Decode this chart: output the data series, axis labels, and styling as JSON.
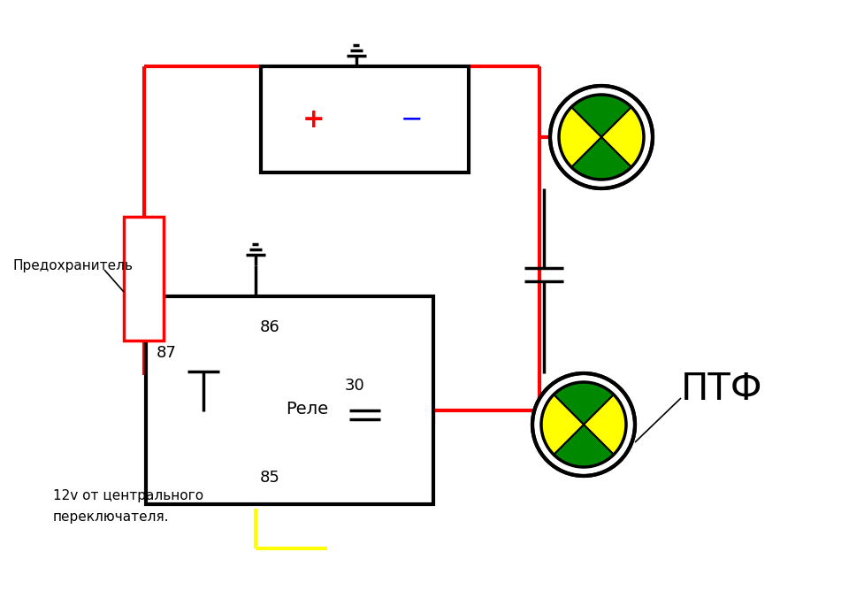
{
  "bg_color": "#ffffff",
  "black": "#000000",
  "red": "#ff0000",
  "yellow": "#ffff00",
  "green": "#008800",
  "lamp_yellow": "#ffff00",
  "label_predohranitel": "Предохранитель",
  "label_12v_line1": "12v от центрального",
  "label_12v_line2": "переключателя.",
  "label_rele": "Реле",
  "label_ptf": "ПТФ",
  "label_86": "86",
  "label_87": "87",
  "label_85": "85",
  "label_30": "30",
  "label_plus": "+",
  "label_minus": "−"
}
